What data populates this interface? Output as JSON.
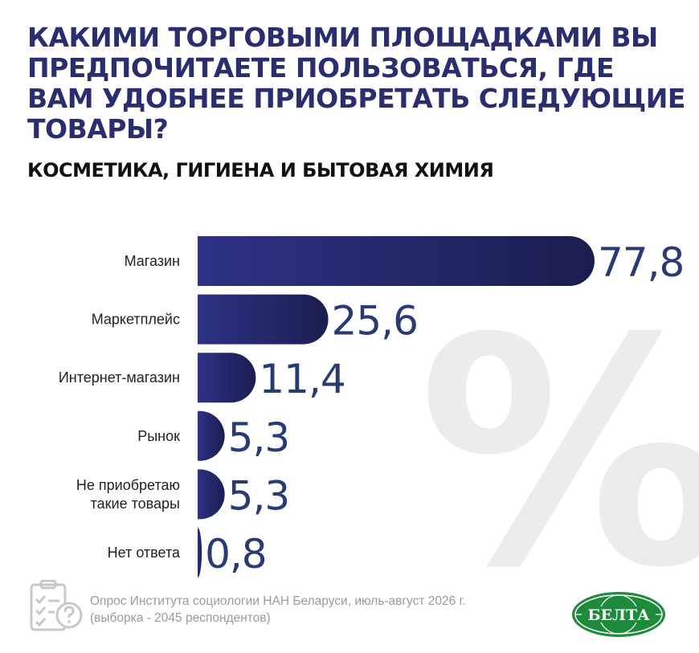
{
  "title": "Какими торговыми площадками вы предпочитаете пользоваться, где вам удобнее приобретать следующие товары?",
  "subtitle": "КОСМЕТИКА, ГИГИЕНА И БЫТОВАЯ ХИМИЯ",
  "background_symbol": "%",
  "footer": {
    "line1": "Опрос Института социологии НАН Беларуси, июль-август 2026 г.",
    "line2": "(выборка - 2045 респондентов)",
    "icon": "clipboard-question-icon",
    "logo_text": "БЕЛТА"
  },
  "colors": {
    "title": "#2a2e6e",
    "bar_start": "#2e3285",
    "bar_end": "#1b1d4f",
    "value": "#2a3b73",
    "label": "#222222",
    "percent_bg": "#ececec",
    "logo": "#1e8a3c"
  },
  "chart_data": {
    "type": "bar",
    "orientation": "horizontal",
    "categories": [
      [
        "Магазин"
      ],
      [
        "Маркетплейс"
      ],
      [
        "Интернет-магазин"
      ],
      [
        "Рынок"
      ],
      [
        "Не приобретаю",
        "такие товары"
      ],
      [
        "Нет ответа"
      ]
    ],
    "values": [
      77.8,
      25.6,
      11.4,
      5.3,
      5.3,
      0.8
    ],
    "value_labels": [
      "77,8",
      "25,6",
      "11,4",
      "5,3",
      "5,3",
      "0,8"
    ],
    "xlim": [
      0,
      77.8
    ],
    "grid": false,
    "legend": "none"
  }
}
